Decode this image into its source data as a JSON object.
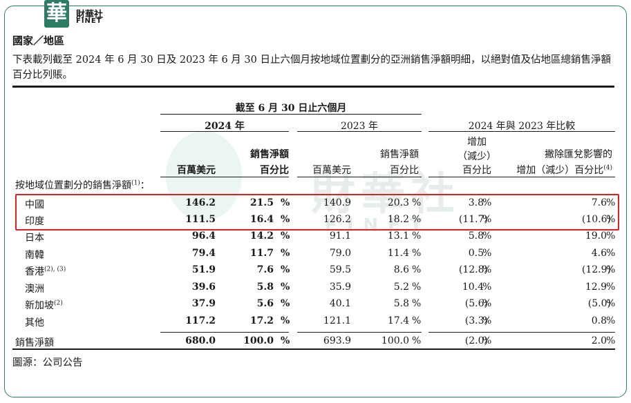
{
  "brand": {
    "mark": "華",
    "name_cn": "財華社",
    "name_en": "FINET"
  },
  "section_title": "國家／地區",
  "intro": "下表載列截至 2024 年 6 月 30 日及 2023 年 6 月 30 日止六個月按地域位置劃分的亞洲銷售淨額明細，以絕對值及佔地區總銷售淨額百分比列賬。",
  "watermark": {
    "cn": "財華社",
    "en": "FINET"
  },
  "table": {
    "period_header": "截至 6 月 30 日止六個月",
    "group_2024": "2024 年",
    "group_2023": "2023 年",
    "group_compare": "2024 年與 2023 年比較",
    "col_2024_amount": "百萬美元",
    "col_2024_pct_line1": "銷售淨額",
    "col_2024_pct_line2": "百分比",
    "col_2023_amount": "百萬美元",
    "col_2023_pct_line1": "銷售淨額",
    "col_2023_pct_line2": "百分比",
    "col_change_line1": "增加",
    "col_change_line2": "（減少）",
    "col_change_line3": "百分比",
    "col_fx_line1": "撇除匯兌影響的",
    "col_fx_line2": "增加（減少）百分比",
    "col_fx_note": "(4)",
    "section_label": "按地域位置劃分的銷售淨額",
    "section_note": "(1)",
    "section_colon": "：",
    "rows": [
      {
        "name": "中國",
        "note": "",
        "a2024": "146.2",
        "p2024": "21.5",
        "a2023": "140.9",
        "p2023": "20.3",
        "chg": "3.8",
        "fx": "7.6"
      },
      {
        "name": "印度",
        "note": "",
        "a2024": "111.5",
        "p2024": "16.4",
        "a2023": "126.2",
        "p2023": "18.2",
        "chg": "(11.7)",
        "fx": "(10.6)"
      },
      {
        "name": "日本",
        "note": "",
        "a2024": "96.4",
        "p2024": "14.2",
        "a2023": "91.1",
        "p2023": "13.1",
        "chg": "5.8",
        "fx": "19.0"
      },
      {
        "name": "南韓",
        "note": "",
        "a2024": "79.4",
        "p2024": "11.7",
        "a2023": "79.0",
        "p2023": "11.4",
        "chg": "0.5",
        "fx": "4.6"
      },
      {
        "name": "香港",
        "note": "(2), (3)",
        "a2024": "51.9",
        "p2024": "7.6",
        "a2023": "59.5",
        "p2023": "8.6",
        "chg": "(12.8)",
        "fx": "(12.9)"
      },
      {
        "name": "澳洲",
        "note": "",
        "a2024": "39.6",
        "p2024": "5.8",
        "a2023": "35.9",
        "p2023": "5.2",
        "chg": "10.4",
        "fx": "12.9"
      },
      {
        "name": "新加坡",
        "note": "(2)",
        "a2024": "37.9",
        "p2024": "5.6",
        "a2023": "40.1",
        "p2023": "5.8",
        "chg": "(5.6)",
        "fx": "(5.0)"
      },
      {
        "name": "其他",
        "note": "",
        "a2024": "117.2",
        "p2024": "17.2",
        "a2023": "121.1",
        "p2023": "17.4",
        "chg": "(3.3)",
        "fx": "0.8"
      }
    ],
    "total": {
      "name": "銷售淨額",
      "a2024": "680.0",
      "p2024": "100.0",
      "a2023": "693.9",
      "p2023": "100.0",
      "chg": "(2.0)",
      "fx": "2.0"
    },
    "pct_sign": "%"
  },
  "source": "圖源：公司公告",
  "colors": {
    "brand_green": "#2d7d63",
    "highlight_red": "#e02020"
  }
}
